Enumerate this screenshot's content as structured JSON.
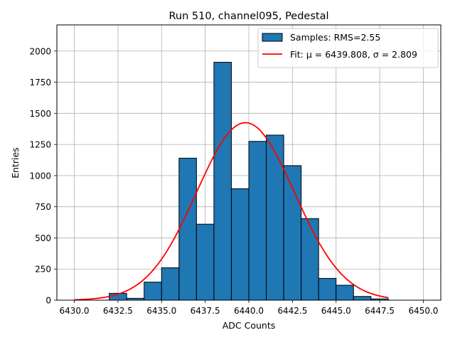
{
  "chart_data": {
    "type": "bar",
    "title": "Run 510, channel095, Pedestal",
    "xlabel": "ADC Counts",
    "ylabel": "Entries",
    "xlim": [
      6429.0,
      6451.0
    ],
    "ylim": [
      0,
      2210
    ],
    "x_ticks": [
      6430.0,
      6432.5,
      6435.0,
      6437.5,
      6440.0,
      6442.5,
      6445.0,
      6447.5,
      6450.0
    ],
    "x_tick_labels": [
      "6430.0",
      "6432.5",
      "6435.0",
      "6437.5",
      "6440.0",
      "6442.5",
      "6445.0",
      "6447.5",
      "6450.0"
    ],
    "y_ticks": [
      0,
      250,
      500,
      750,
      1000,
      1250,
      1500,
      1750,
      2000
    ],
    "y_tick_labels": [
      "0",
      "250",
      "500",
      "750",
      "1000",
      "1250",
      "1500",
      "1750",
      "2000"
    ],
    "grid": true,
    "legend_position": "top-right",
    "bin_edges": [
      6432.0,
      6433.0,
      6434.0,
      6435.0,
      6436.0,
      6437.0,
      6438.0,
      6439.0,
      6440.0,
      6441.0,
      6442.0,
      6443.0,
      6444.0,
      6445.0,
      6446.0,
      6447.0,
      6448.0
    ],
    "counts": [
      55,
      15,
      145,
      260,
      1140,
      610,
      1910,
      895,
      1275,
      1325,
      1080,
      655,
      175,
      120,
      30,
      10
    ],
    "fit": {
      "mu": 6439.808,
      "sigma": 2.809,
      "amplitude": 1425,
      "x_start": 6430.0,
      "x_end": 6448.0
    },
    "series": [
      {
        "name": "Samples: RMS=2.55",
        "color": "#1f77b4",
        "kind": "histogram"
      },
      {
        "name": "Fit: μ = 6439.808, σ = 2.809",
        "color": "#ff0000",
        "kind": "line"
      }
    ]
  }
}
